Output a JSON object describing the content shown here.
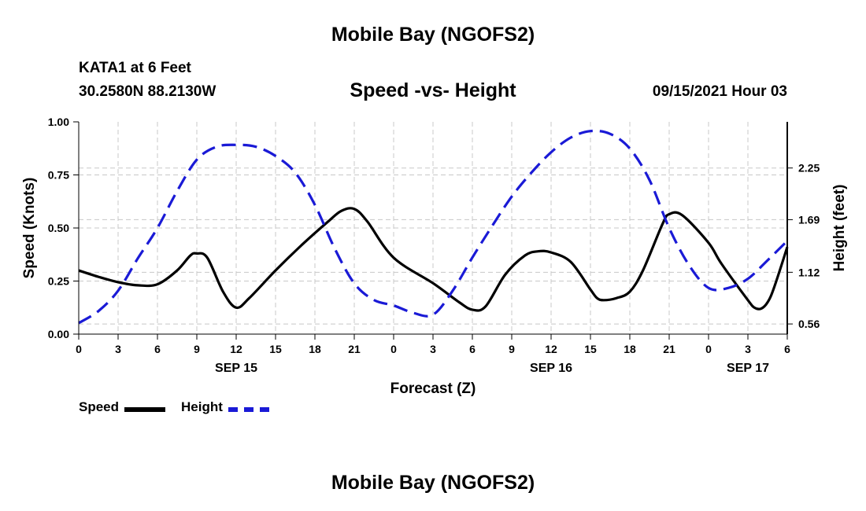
{
  "titles": {
    "top": "Mobile Bay (NGOFS2)",
    "bottom": "Mobile Bay (NGOFS2)",
    "station": "KATA1 at 6 Feet",
    "coords": "30.2580N  88.2130W",
    "chart": "Speed -vs- Height",
    "date": "09/15/2021 Hour 03"
  },
  "legend": {
    "speed_label": "Speed",
    "height_label": "Height"
  },
  "colors": {
    "speed": "#000000",
    "height": "#1a1ad6",
    "grid": "#c8c8c8"
  },
  "chart_data": {
    "type": "line",
    "xlabel": "Forecast (Z)",
    "ylabel": "Speed (Knots)",
    "y2label": "Height (feet)",
    "x_unit": "hours from 09/15 00Z",
    "xlim": [
      0,
      54
    ],
    "ylim": [
      0,
      1.0
    ],
    "y2lim": [
      0.45,
      2.75
    ],
    "x_tick_values": [
      0,
      3,
      6,
      9,
      12,
      15,
      18,
      21,
      24,
      27,
      30,
      33,
      36,
      39,
      42,
      45,
      48,
      51,
      54
    ],
    "x_tick_labels": [
      "0",
      "3",
      "6",
      "9",
      "12",
      "15",
      "18",
      "21",
      "0",
      "3",
      "6",
      "9",
      "12",
      "15",
      "18",
      "21",
      "0",
      "3",
      "6"
    ],
    "date_labels": [
      {
        "x": 12,
        "label": "SEP 15"
      },
      {
        "x": 36,
        "label": "SEP 16"
      },
      {
        "x": 51,
        "label": "SEP 17"
      }
    ],
    "y_ticks": [
      0.0,
      0.25,
      0.5,
      0.75,
      1.0
    ],
    "y_tick_labels": [
      "0.00",
      "0.25",
      "0.50",
      "0.75",
      "1.00"
    ],
    "y2_ticks": [
      0.56,
      1.12,
      1.69,
      2.25
    ],
    "y2_tick_labels": [
      "0.56",
      "1.12",
      "1.69",
      "2.25"
    ],
    "grid": true,
    "legend_position": "bottom-left",
    "series": [
      {
        "name": "Speed",
        "axis": "left",
        "style": "solid",
        "x": [
          0,
          1.5,
          3,
          4.5,
          6,
          7.5,
          8.5,
          9,
          9.8,
          11,
          12,
          13,
          15,
          17,
          19,
          20,
          21,
          22,
          24,
          27,
          29,
          30,
          31,
          32.5,
          34,
          35,
          36,
          37.5,
          39,
          39.5,
          40,
          41,
          42,
          43,
          44.5,
          45,
          46,
          48,
          49,
          51,
          51.5,
          52,
          52.5,
          53,
          54
        ],
        "values": [
          0.3,
          0.27,
          0.245,
          0.23,
          0.235,
          0.3,
          0.37,
          0.38,
          0.36,
          0.2,
          0.125,
          0.17,
          0.3,
          0.42,
          0.53,
          0.58,
          0.59,
          0.53,
          0.36,
          0.24,
          0.15,
          0.115,
          0.13,
          0.28,
          0.37,
          0.39,
          0.385,
          0.34,
          0.21,
          0.17,
          0.16,
          0.17,
          0.2,
          0.3,
          0.52,
          0.565,
          0.56,
          0.43,
          0.33,
          0.16,
          0.125,
          0.12,
          0.15,
          0.22,
          0.41
        ]
      },
      {
        "name": "Height",
        "axis": "right",
        "style": "dashed",
        "x": [
          0,
          1.5,
          3,
          4.5,
          6,
          7.5,
          9,
          10.5,
          12,
          13.5,
          15,
          16.5,
          18,
          19.5,
          21,
          22.5,
          24,
          25.5,
          27,
          28.5,
          30,
          31.5,
          33,
          34.5,
          36,
          37.5,
          39,
          40.5,
          42,
          43.5,
          45,
          46.5,
          48,
          49.5,
          51,
          52.5,
          54
        ],
        "values": [
          0.57,
          0.7,
          0.92,
          1.27,
          1.6,
          2.0,
          2.34,
          2.48,
          2.5,
          2.48,
          2.38,
          2.2,
          1.85,
          1.38,
          1.0,
          0.82,
          0.76,
          0.68,
          0.66,
          0.92,
          1.28,
          1.62,
          1.94,
          2.2,
          2.42,
          2.58,
          2.65,
          2.62,
          2.46,
          2.12,
          1.6,
          1.2,
          0.95,
          0.95,
          1.05,
          1.25,
          1.46
        ]
      }
    ]
  }
}
